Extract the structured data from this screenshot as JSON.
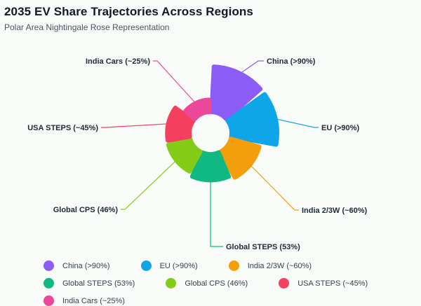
{
  "header": {
    "title": "2035 EV Share Trajectories Across Regions",
    "subtitle": "Polar Area Nightingale Rose Representation"
  },
  "chart_data": {
    "type": "polar-area",
    "categories": [
      "China (>90%)",
      "EU (>90%)",
      "India 2/3W (~60%)",
      "Global STEPS (53%)",
      "Global CPS (46%)",
      "USA STEPS (~45%)",
      "India Cars (~25%)"
    ],
    "values": [
      92,
      92,
      60,
      53,
      46,
      45,
      25
    ],
    "colors": [
      "#8b5cf6",
      "#0ea5e9",
      "#f59e0b",
      "#10b981",
      "#84cc16",
      "#f43f5e",
      "#ec4899"
    ],
    "legend": [
      "China (>90%)",
      "EU (>90%)",
      "India 2/3W (~60%)",
      "Global STEPS (53%)",
      "Global CPS (46%)",
      "USA STEPS (~45%)",
      "India Cars (~25%)"
    ],
    "legend_position": "bottom"
  }
}
